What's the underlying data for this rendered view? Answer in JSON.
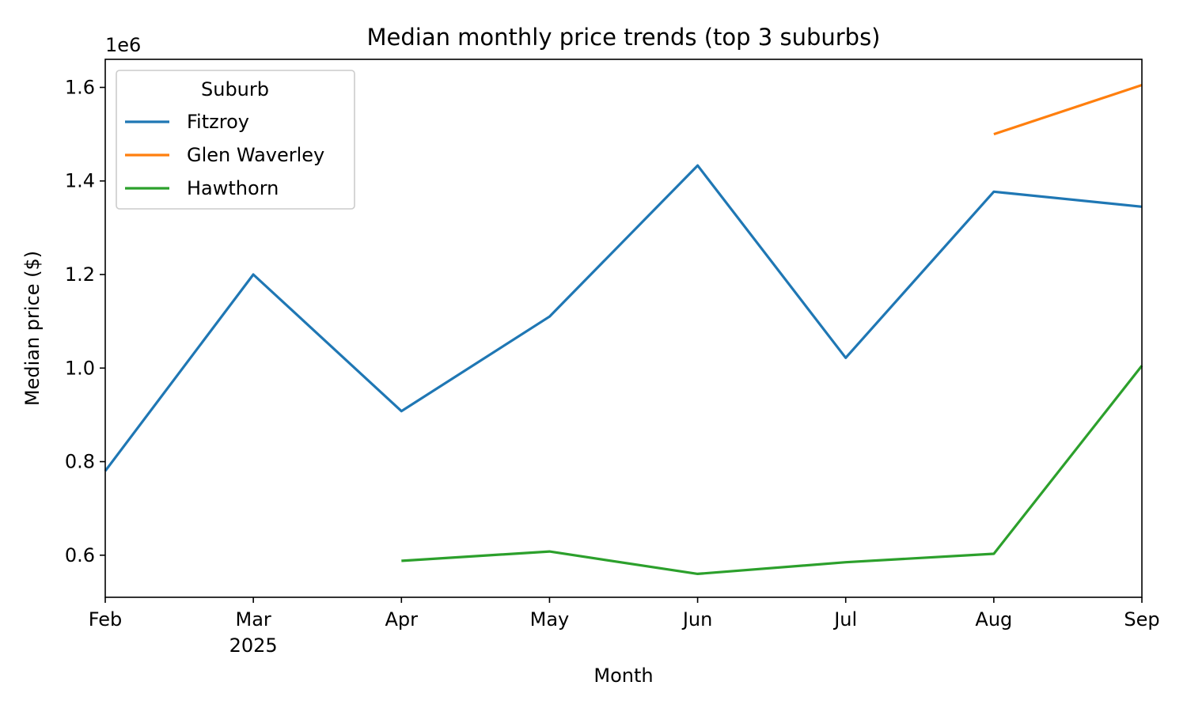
{
  "chart_data": {
    "type": "line",
    "title": "Median monthly price trends (top 3 suburbs)",
    "xlabel": "Month",
    "ylabel": "Median price ($)",
    "y_offset_label": "1e6",
    "x_ticks": [
      "Feb",
      "Mar",
      "Apr",
      "May",
      "Jun",
      "Jul",
      "Aug",
      "Sep"
    ],
    "x_year_label": "2025",
    "y_ticks": [
      "0.6",
      "0.8",
      "1.0",
      "1.2",
      "1.4",
      "1.6"
    ],
    "y_tick_values": [
      600000,
      800000,
      1000000,
      1200000,
      1400000,
      1600000
    ],
    "ylim": [
      510000,
      1660000
    ],
    "grid": false,
    "legend": {
      "title": "Suburb",
      "placement": "top-left"
    },
    "x": [
      "2025-02",
      "2025-03",
      "2025-04",
      "2025-05",
      "2025-06",
      "2025-07",
      "2025-08",
      "2025-09"
    ],
    "series": [
      {
        "name": "Fitzroy",
        "color": "#1f77b4",
        "values": [
          780000,
          1200000,
          908000,
          1110000,
          1433000,
          1022000,
          1377000,
          1345000
        ]
      },
      {
        "name": "Glen Waverley",
        "color": "#ff7f0e",
        "values": [
          null,
          null,
          null,
          null,
          null,
          null,
          1500000,
          1605000
        ]
      },
      {
        "name": "Hawthorn",
        "color": "#2ca02c",
        "values": [
          null,
          null,
          588000,
          608000,
          560000,
          585000,
          603000,
          1005000
        ]
      }
    ]
  }
}
